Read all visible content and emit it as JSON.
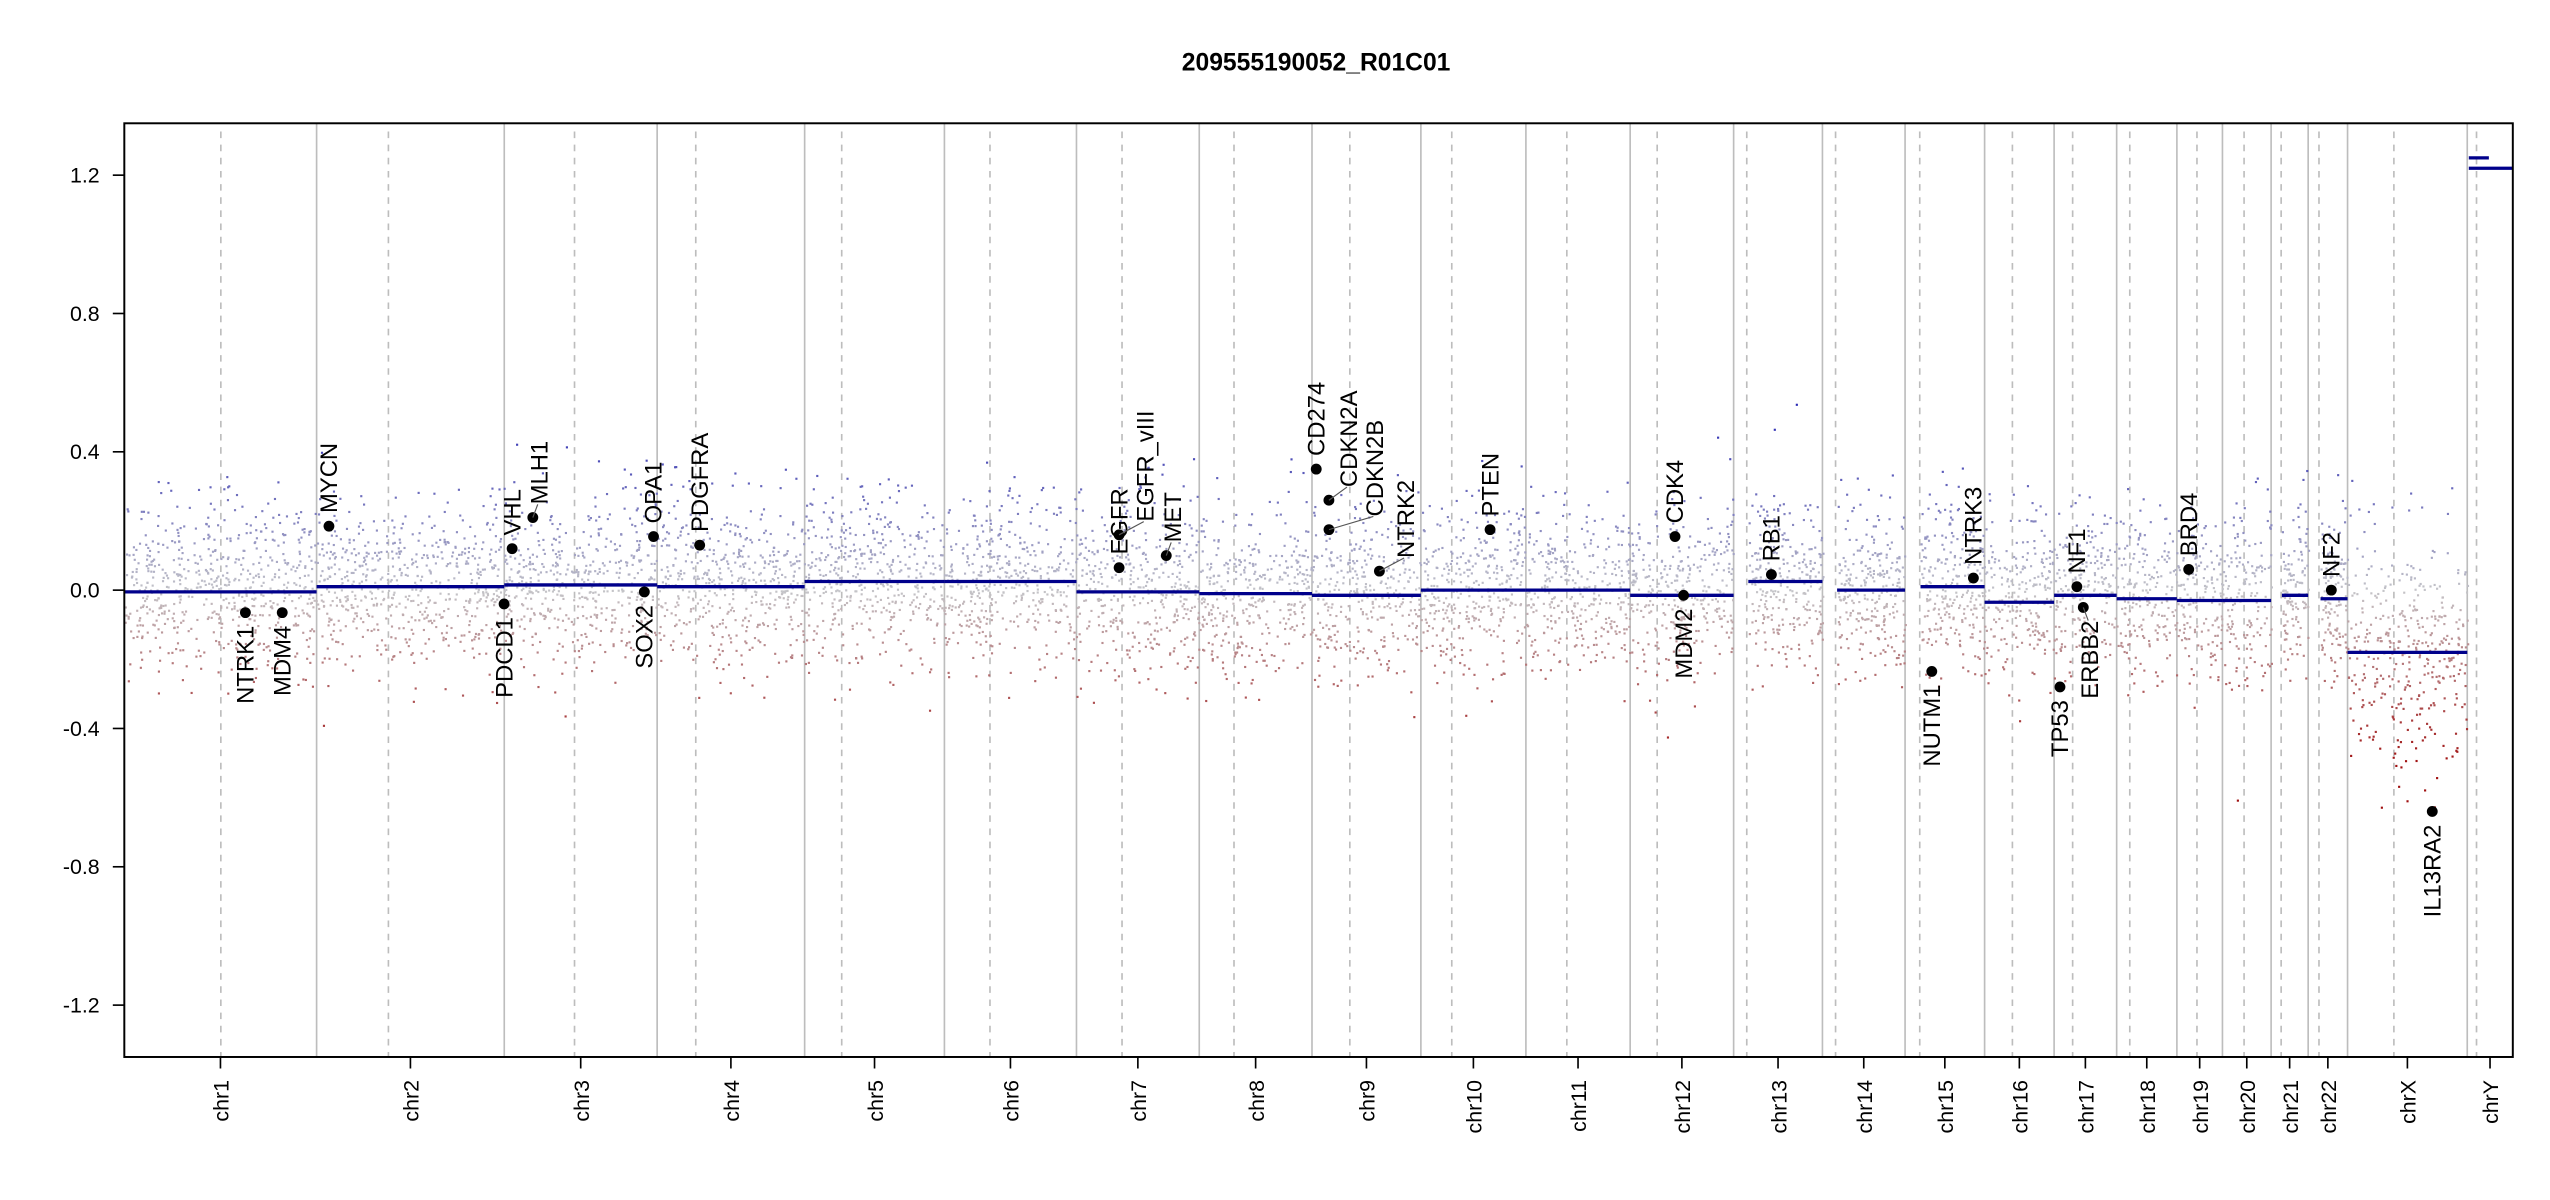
{
  "chart_data": {
    "type": "scatter",
    "title": "209555190052_R01C01",
    "xlabel": "",
    "ylabel": "",
    "ylim": [
      -1.35,
      1.35
    ],
    "yticks": [
      "-1.2",
      "-0.8",
      "-0.4",
      "0.0",
      "0.4",
      "0.8",
      "1.2"
    ],
    "grid": false,
    "colors": {
      "segment": "#00008b",
      "gain": "#2a2ab4",
      "loss": "#a01010",
      "neutral": "#c4c4c8",
      "gene_dot": "#000000",
      "boundary": "#bdbdbd"
    },
    "probe_noise_sd": 0.12,
    "chromosomes": [
      {
        "name": "chr1",
        "length_mb": 249,
        "centromere_mb": 125,
        "segments": [
          {
            "start": 0,
            "end": 249,
            "mean": -0.005
          }
        ]
      },
      {
        "name": "chr2",
        "length_mb": 243,
        "centromere_mb": 93,
        "segments": [
          {
            "start": 0,
            "end": 243,
            "mean": 0.01
          }
        ]
      },
      {
        "name": "chr3",
        "length_mb": 198,
        "centromere_mb": 91,
        "segments": [
          {
            "start": 0,
            "end": 198,
            "mean": 0.015
          }
        ]
      },
      {
        "name": "chr4",
        "length_mb": 191,
        "centromere_mb": 50,
        "segments": [
          {
            "start": 0,
            "end": 191,
            "mean": 0.01
          }
        ]
      },
      {
        "name": "chr5",
        "length_mb": 181,
        "centromere_mb": 48,
        "segments": [
          {
            "start": 0,
            "end": 181,
            "mean": 0.025
          }
        ]
      },
      {
        "name": "chr6",
        "length_mb": 171,
        "centromere_mb": 59,
        "segments": [
          {
            "start": 0,
            "end": 171,
            "mean": 0.025
          }
        ]
      },
      {
        "name": "chr7",
        "length_mb": 159,
        "centromere_mb": 59,
        "segments": [
          {
            "start": 0,
            "end": 159,
            "mean": -0.005
          }
        ]
      },
      {
        "name": "chr8",
        "length_mb": 146,
        "centromere_mb": 45,
        "segments": [
          {
            "start": 0,
            "end": 146,
            "mean": -0.01
          }
        ]
      },
      {
        "name": "chr9",
        "length_mb": 141,
        "centromere_mb": 49,
        "segments": [
          {
            "start": 0,
            "end": 141,
            "mean": -0.015
          }
        ]
      },
      {
        "name": "chr10",
        "length_mb": 136,
        "centromere_mb": 40,
        "segments": [
          {
            "start": 0,
            "end": 136,
            "mean": 0.0
          }
        ]
      },
      {
        "name": "chr11",
        "length_mb": 135,
        "centromere_mb": 53,
        "segments": [
          {
            "start": 0,
            "end": 135,
            "mean": 0.0
          }
        ]
      },
      {
        "name": "chr12",
        "length_mb": 134,
        "centromere_mb": 35,
        "segments": [
          {
            "start": 0,
            "end": 134,
            "mean": -0.015
          }
        ]
      },
      {
        "name": "chr13",
        "length_mb": 115,
        "centromere_mb": 17,
        "segments": [
          {
            "start": 19,
            "end": 115,
            "mean": 0.025
          }
        ]
      },
      {
        "name": "chr14",
        "length_mb": 107,
        "centromere_mb": 17,
        "segments": [
          {
            "start": 19,
            "end": 107,
            "mean": 0.0
          }
        ]
      },
      {
        "name": "chr15",
        "length_mb": 103,
        "centromere_mb": 19,
        "segments": [
          {
            "start": 20,
            "end": 103,
            "mean": 0.01
          }
        ]
      },
      {
        "name": "chr16",
        "length_mb": 90,
        "centromere_mb": 36,
        "segments": [
          {
            "start": 0,
            "end": 90,
            "mean": -0.035
          }
        ]
      },
      {
        "name": "chr17",
        "length_mb": 81,
        "centromere_mb": 24,
        "segments": [
          {
            "start": 0,
            "end": 81,
            "mean": -0.015
          }
        ]
      },
      {
        "name": "chr18",
        "length_mb": 78,
        "centromere_mb": 17,
        "segments": [
          {
            "start": 0,
            "end": 78,
            "mean": -0.025
          }
        ]
      },
      {
        "name": "chr19",
        "length_mb": 59,
        "centromere_mb": 26,
        "segments": [
          {
            "start": 0,
            "end": 59,
            "mean": -0.03
          }
        ]
      },
      {
        "name": "chr20",
        "length_mb": 63,
        "centromere_mb": 28,
        "segments": [
          {
            "start": 0,
            "end": 63,
            "mean": -0.03
          }
        ]
      },
      {
        "name": "chr21",
        "length_mb": 48,
        "centromere_mb": 13,
        "segments": [
          {
            "start": 14,
            "end": 48,
            "mean": -0.015
          }
        ]
      },
      {
        "name": "chr22",
        "length_mb": 51,
        "centromere_mb": 14,
        "segments": [
          {
            "start": 16,
            "end": 51,
            "mean": -0.025
          }
        ]
      },
      {
        "name": "chrX",
        "length_mb": 155,
        "centromere_mb": 60,
        "segments": [
          {
            "start": 0,
            "end": 155,
            "mean": -0.18
          }
        ]
      },
      {
        "name": "chrY",
        "length_mb": 59,
        "centromere_mb": 12,
        "segments": [
          {
            "start": 2,
            "end": 59,
            "mean": 1.22
          },
          {
            "start": 2,
            "end": 28,
            "mean": 1.25
          }
        ]
      }
    ],
    "genes": [
      {
        "name": "NTRK1",
        "chrom": "chr1",
        "pos_mb": 156.8,
        "value": -0.065
      },
      {
        "name": "MDM4",
        "chrom": "chr1",
        "pos_mb": 204.5,
        "value": -0.065
      },
      {
        "name": "MYCN",
        "chrom": "chr2",
        "pos_mb": 16.0,
        "value": 0.185
      },
      {
        "name": "PDCD1",
        "chrom": "chr2",
        "pos_mb": 242.8,
        "value": -0.04
      },
      {
        "name": "VHL",
        "chrom": "chr3",
        "pos_mb": 10.2,
        "value": 0.12
      },
      {
        "name": "MLH1",
        "chrom": "chr3",
        "pos_mb": 37.0,
        "value": 0.21
      },
      {
        "name": "SOX2",
        "chrom": "chr3",
        "pos_mb": 181.4,
        "value": -0.005
      },
      {
        "name": "OPA1",
        "chrom": "chr3",
        "pos_mb": 193.3,
        "value": 0.155
      },
      {
        "name": "PDGFRA",
        "chrom": "chr4",
        "pos_mb": 55.1,
        "value": 0.13
      },
      {
        "name": "EGFR",
        "chrom": "chr7",
        "pos_mb": 55.2,
        "value": 0.065
      },
      {
        "name": "EGFR_vIII",
        "chrom": "chr7",
        "pos_mb": 55.2,
        "value": 0.16
      },
      {
        "name": "MET",
        "chrom": "chr7",
        "pos_mb": 116.3,
        "value": 0.1
      },
      {
        "name": "CD274",
        "chrom": "chr9",
        "pos_mb": 5.5,
        "value": 0.35
      },
      {
        "name": "CDKN2A",
        "chrom": "chr9",
        "pos_mb": 21.9,
        "value": 0.26
      },
      {
        "name": "CDKN2B",
        "chrom": "chr9",
        "pos_mb": 22.0,
        "value": 0.175
      },
      {
        "name": "NTRK2",
        "chrom": "chr9",
        "pos_mb": 87.3,
        "value": 0.055
      },
      {
        "name": "PTEN",
        "chrom": "chr10",
        "pos_mb": 89.6,
        "value": 0.175
      },
      {
        "name": "CDK4",
        "chrom": "chr12",
        "pos_mb": 58.1,
        "value": 0.155
      },
      {
        "name": "MDM2",
        "chrom": "chr12",
        "pos_mb": 69.2,
        "value": -0.015
      },
      {
        "name": "RB1",
        "chrom": "chr13",
        "pos_mb": 48.9,
        "value": 0.045
      },
      {
        "name": "NUTM1",
        "chrom": "chr15",
        "pos_mb": 34.6,
        "value": -0.235
      },
      {
        "name": "NTRK3",
        "chrom": "chr15",
        "pos_mb": 88.5,
        "value": 0.035
      },
      {
        "name": "TP53",
        "chrom": "chr17",
        "pos_mb": 7.6,
        "value": -0.28
      },
      {
        "name": "NF1",
        "chrom": "chr17",
        "pos_mb": 29.5,
        "value": 0.01
      },
      {
        "name": "ERBB2",
        "chrom": "chr17",
        "pos_mb": 37.8,
        "value": -0.05
      },
      {
        "name": "BRD4",
        "chrom": "chr19",
        "pos_mb": 15.3,
        "value": 0.06
      },
      {
        "name": "NF2",
        "chrom": "chr22",
        "pos_mb": 30.0,
        "value": 0.0
      },
      {
        "name": "IL13RA2",
        "chrom": "chrX",
        "pos_mb": 109.7,
        "value": -0.64
      }
    ]
  }
}
